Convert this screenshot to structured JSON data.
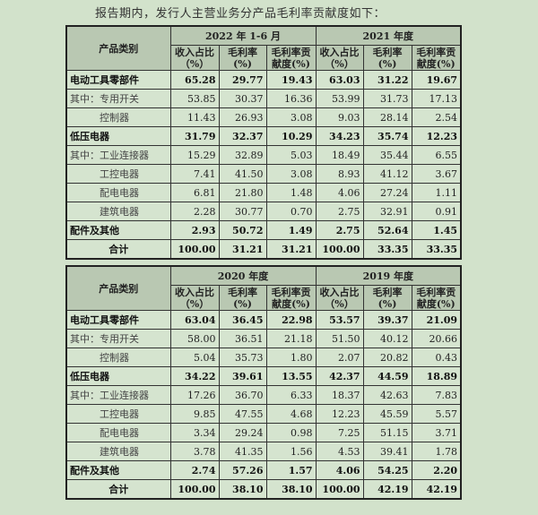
{
  "intro": "报告期内，发行人主营业务分产品毛利率贡献度如下：",
  "category_header": "产品类别",
  "sub_headers": [
    [
      "收入占比",
      "（%）"
    ],
    [
      "毛利率",
      "(%)"
    ],
    [
      "毛利率贡",
      "献度(%)"
    ]
  ],
  "tables": [
    {
      "periods": [
        "2022 年 1-6 月",
        "2021 年度"
      ],
      "rows": [
        {
          "label": "电动工具零部件",
          "style": "bold",
          "values": [
            "65.28",
            "29.77",
            "19.43",
            "63.03",
            "31.22",
            "19.67"
          ]
        },
        {
          "label": "其中：专用开关",
          "style": "",
          "values": [
            "53.85",
            "30.37",
            "16.36",
            "53.99",
            "31.73",
            "17.13"
          ]
        },
        {
          "label": "控制器",
          "style": "ind",
          "values": [
            "11.43",
            "26.93",
            "3.08",
            "9.03",
            "28.14",
            "2.54"
          ]
        },
        {
          "label": "低压电器",
          "style": "bold",
          "values": [
            "31.79",
            "32.37",
            "10.29",
            "34.23",
            "35.74",
            "12.23"
          ]
        },
        {
          "label": "其中：工业连接器",
          "style": "",
          "values": [
            "15.29",
            "32.89",
            "5.03",
            "18.49",
            "35.44",
            "6.55"
          ]
        },
        {
          "label": "工控电器",
          "style": "ind",
          "values": [
            "7.41",
            "41.50",
            "3.08",
            "8.93",
            "41.12",
            "3.67"
          ]
        },
        {
          "label": "配电电器",
          "style": "ind",
          "values": [
            "6.81",
            "21.80",
            "1.48",
            "4.06",
            "27.24",
            "1.11"
          ]
        },
        {
          "label": "建筑电器",
          "style": "ind",
          "values": [
            "2.28",
            "30.77",
            "0.70",
            "2.75",
            "32.91",
            "0.91"
          ]
        },
        {
          "label": "配件及其他",
          "style": "bold",
          "values": [
            "2.93",
            "50.72",
            "1.49",
            "2.75",
            "52.64",
            "1.45"
          ]
        },
        {
          "label": "合计",
          "style": "total",
          "values": [
            "100.00",
            "31.21",
            "31.21",
            "100.00",
            "33.35",
            "33.35"
          ]
        }
      ]
    },
    {
      "periods": [
        "2020 年度",
        "2019 年度"
      ],
      "rows": [
        {
          "label": "电动工具零部件",
          "style": "bold",
          "values": [
            "63.04",
            "36.45",
            "22.98",
            "53.57",
            "39.37",
            "21.09"
          ]
        },
        {
          "label": "其中：专用开关",
          "style": "",
          "values": [
            "58.00",
            "36.51",
            "21.18",
            "51.50",
            "40.12",
            "20.66"
          ]
        },
        {
          "label": "控制器",
          "style": "ind",
          "values": [
            "5.04",
            "35.73",
            "1.80",
            "2.07",
            "20.82",
            "0.43"
          ]
        },
        {
          "label": "低压电器",
          "style": "bold",
          "values": [
            "34.22",
            "39.61",
            "13.55",
            "42.37",
            "44.59",
            "18.89"
          ]
        },
        {
          "label": "其中：工业连接器",
          "style": "",
          "values": [
            "17.26",
            "36.70",
            "6.33",
            "18.37",
            "42.63",
            "7.83"
          ]
        },
        {
          "label": "工控电器",
          "style": "ind",
          "values": [
            "9.85",
            "47.55",
            "4.68",
            "12.23",
            "45.59",
            "5.57"
          ]
        },
        {
          "label": "配电电器",
          "style": "ind",
          "values": [
            "3.34",
            "29.24",
            "0.98",
            "7.25",
            "51.15",
            "3.71"
          ]
        },
        {
          "label": "建筑电器",
          "style": "ind",
          "values": [
            "3.78",
            "41.35",
            "1.56",
            "4.53",
            "39.41",
            "1.78"
          ]
        },
        {
          "label": "配件及其他",
          "style": "bold",
          "values": [
            "2.74",
            "57.26",
            "1.57",
            "4.06",
            "54.25",
            "2.20"
          ]
        },
        {
          "label": "合计",
          "style": "total",
          "values": [
            "100.00",
            "38.10",
            "38.10",
            "100.00",
            "42.19",
            "42.19"
          ]
        }
      ]
    }
  ]
}
